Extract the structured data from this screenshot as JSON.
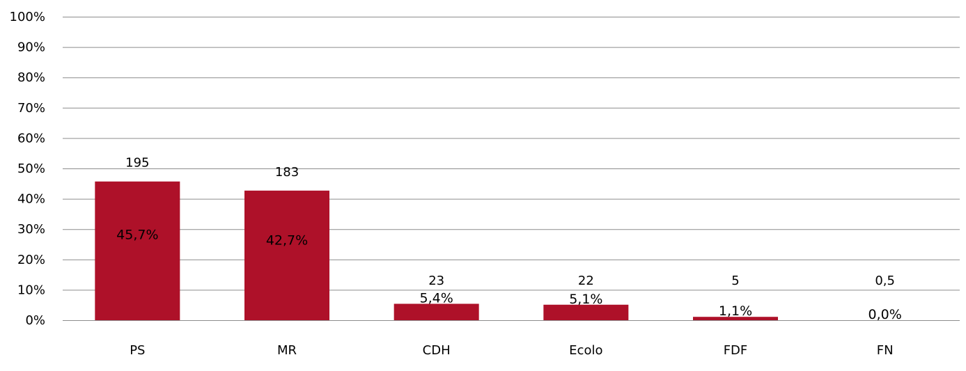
{
  "chart_data": {
    "type": "bar",
    "title": "",
    "xlabel": "",
    "ylabel": "",
    "ylim": [
      0,
      100
    ],
    "y_ticks": [
      "0%",
      "10%",
      "20%",
      "30%",
      "40%",
      "50%",
      "60%",
      "70%",
      "80%",
      "90%",
      "100%"
    ],
    "grid": true,
    "bar_color": "#ae1129",
    "categories": [
      "PS",
      "MR",
      "CDH",
      "Ecolo",
      "FDF",
      "FN"
    ],
    "values": [
      45.7,
      42.7,
      5.4,
      5.1,
      1.1,
      0.0
    ],
    "value_labels": [
      "45,7%",
      "42,7%",
      "5,4%",
      "5,1%",
      "1,1%",
      "0,0%"
    ],
    "count_labels": [
      "195",
      "183",
      "23",
      "22",
      "5",
      "0,5"
    ]
  }
}
